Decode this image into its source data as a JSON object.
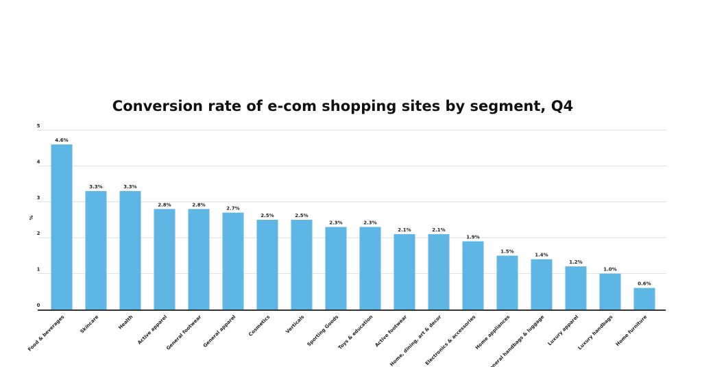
{
  "chart_data": {
    "type": "bar",
    "title": "Conversion rate of e-com shopping sites by segment, Q4",
    "xlabel": "",
    "ylabel": "%",
    "ylim": [
      0,
      5
    ],
    "yticks": [
      0,
      1,
      2,
      3,
      4,
      5
    ],
    "grid": true,
    "bar_color": "#5EB6E4",
    "categories": [
      "Food & beverages",
      "Skincare",
      "Health",
      "Active apparel",
      "General footwear",
      "General apparel",
      "Cosmetics",
      "Verticals",
      "Sporting Goods",
      "Toys & education",
      "Active footwear",
      "Home, dining, art & decor",
      "Electronics & accessories",
      "Home appliances",
      "General handbags & luggage",
      "Luxury apparel",
      "Luxury handbags",
      "Home furniture"
    ],
    "values": [
      4.6,
      3.3,
      3.3,
      2.8,
      2.8,
      2.7,
      2.5,
      2.5,
      2.3,
      2.3,
      2.1,
      2.1,
      1.9,
      1.5,
      1.4,
      1.2,
      1.0,
      0.6
    ],
    "data_labels": [
      "4.6%",
      "3.3%",
      "3.3%",
      "2.8%",
      "2.8%",
      "2.7%",
      "2.5%",
      "2.5%",
      "2.3%",
      "2.3%",
      "2.1%",
      "2.1%",
      "1.9%",
      "1.5%",
      "1.4%",
      "1.2%",
      "1.0%",
      "0.6%"
    ]
  }
}
